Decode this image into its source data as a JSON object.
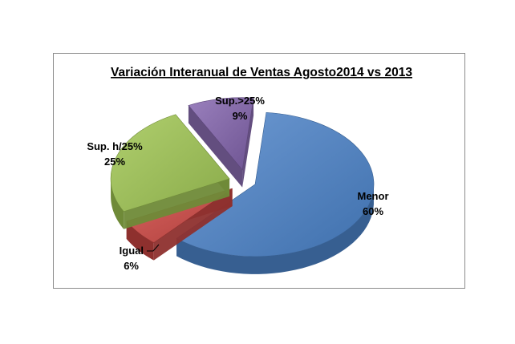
{
  "chart_data": {
    "type": "pie",
    "title": "Variación Interanual  de Ventas Agosto2014 vs 2013",
    "style": "3d-exploded",
    "legend": "none",
    "slices": [
      {
        "label": "Menor",
        "value": 60,
        "value_label": "60%",
        "color": "#4f81bd"
      },
      {
        "label": "Igual",
        "value": 6,
        "value_label": "6%",
        "color": "#c0504d"
      },
      {
        "label": "Sup. h/25%",
        "value": 25,
        "value_label": "25%",
        "color": "#9bbb59"
      },
      {
        "label": "Sup.>25%",
        "value": 9,
        "value_label": "9%",
        "color": "#8064a2"
      }
    ]
  }
}
